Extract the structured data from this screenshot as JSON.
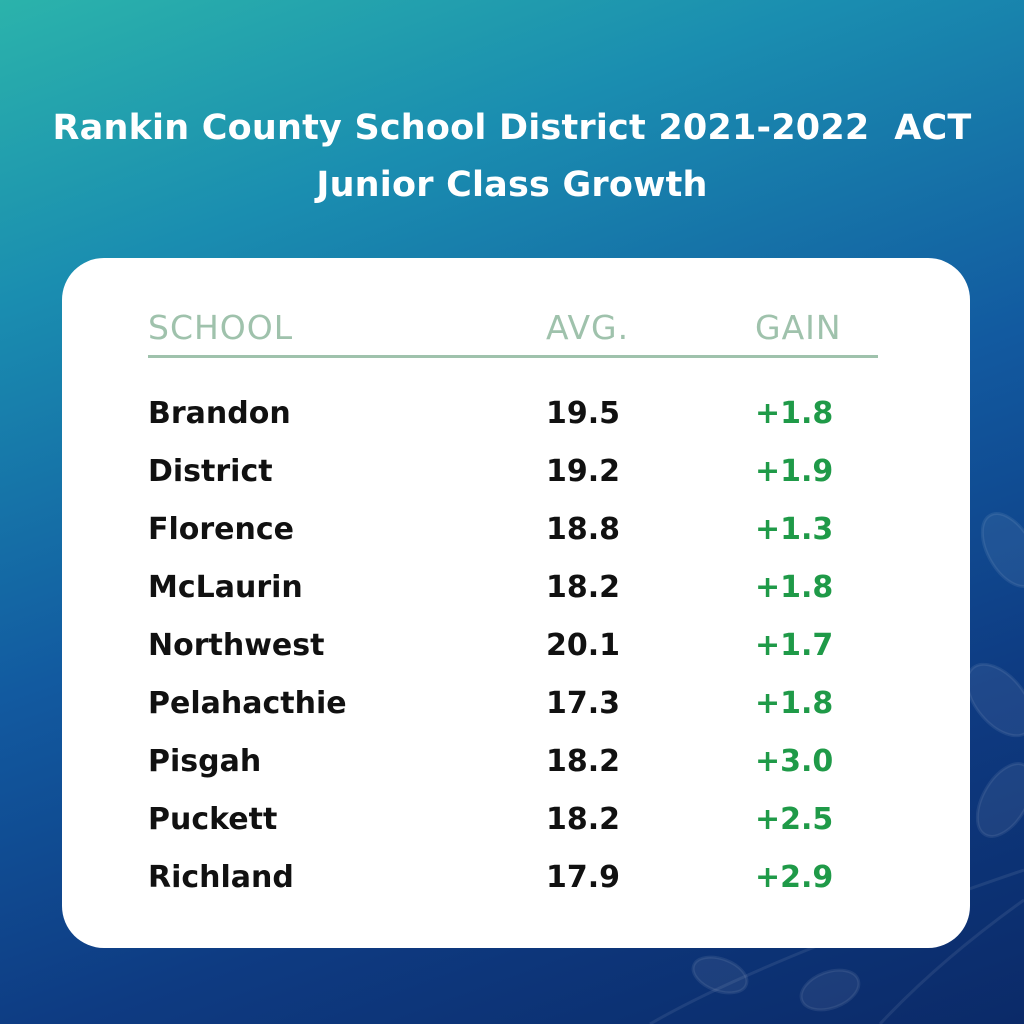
{
  "header": {
    "title_lines": [
      "Rankin County School District 2021-2022  ACT",
      "Junior Class Growth"
    ]
  },
  "table": {
    "columns": [
      "SCHOOL",
      "AVG.",
      "GAIN"
    ],
    "rows": [
      [
        "Brandon",
        "19.5",
        "+1.8"
      ],
      [
        "District",
        "19.2",
        "+1.9"
      ],
      [
        "Florence",
        "18.8",
        "+1.3"
      ],
      [
        "McLaurin",
        "18.2",
        "+1.8"
      ],
      [
        "Northwest",
        "20.1",
        "+1.7"
      ],
      [
        "Pelahacthie",
        "17.3",
        "+1.8"
      ],
      [
        "Pisgah",
        "18.2",
        "+3.0"
      ],
      [
        "Puckett",
        "18.2",
        "+2.5"
      ],
      [
        "Richland",
        "17.9",
        "+2.9"
      ]
    ]
  }
}
